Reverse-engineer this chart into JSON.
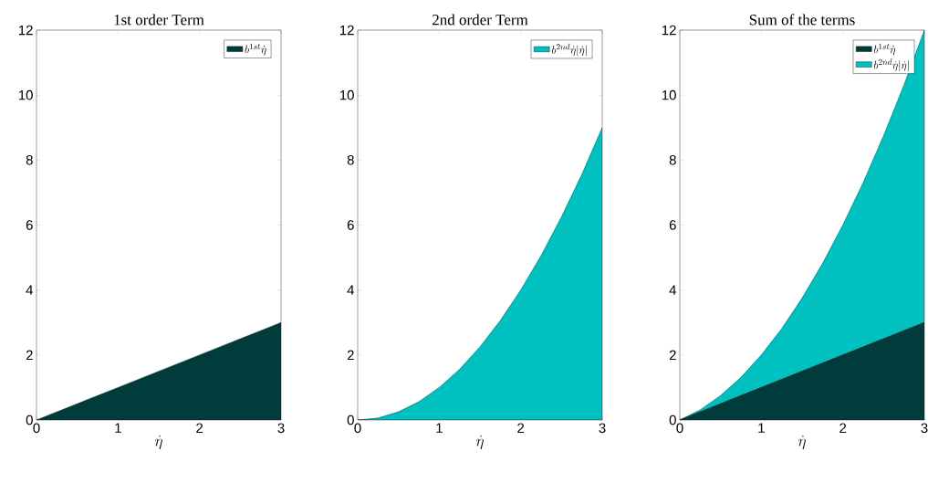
{
  "chart_data": [
    {
      "type": "area",
      "title": "1st order Term",
      "xlabel": "\\dot{\\eta}",
      "x": [
        0,
        0.25,
        0.5,
        0.75,
        1,
        1.25,
        1.5,
        1.75,
        2,
        2.25,
        2.5,
        2.75,
        3
      ],
      "series": [
        {
          "name": "b^{1st}\\dot{\\eta}",
          "color": "#003c3c",
          "values": [
            0,
            0.25,
            0.5,
            0.75,
            1,
            1.25,
            1.5,
            1.75,
            2,
            2.25,
            2.5,
            2.75,
            3
          ]
        }
      ],
      "xlim": [
        0,
        3
      ],
      "ylim": [
        0,
        12
      ],
      "xticks": [
        0,
        1,
        2,
        3
      ],
      "yticks": [
        0,
        2,
        4,
        6,
        8,
        10,
        12
      ],
      "legend": "top right"
    },
    {
      "type": "area",
      "title": "2nd order Term",
      "xlabel": "\\dot{\\eta}",
      "x": [
        0,
        0.25,
        0.5,
        0.75,
        1,
        1.25,
        1.5,
        1.75,
        2,
        2.25,
        2.5,
        2.75,
        3
      ],
      "series": [
        {
          "name": "b^{2nd}\\dot{\\eta}|\\dot{\\eta}|",
          "color": "#00c0c0",
          "values": [
            0,
            0.06,
            0.25,
            0.56,
            1,
            1.56,
            2.25,
            3.06,
            4,
            5.06,
            6.25,
            7.56,
            9
          ]
        }
      ],
      "xlim": [
        0,
        3
      ],
      "ylim": [
        0,
        12
      ],
      "xticks": [
        0,
        1,
        2,
        3
      ],
      "yticks": [
        0,
        2,
        4,
        6,
        8,
        10,
        12
      ],
      "legend": "top right"
    },
    {
      "type": "area",
      "title": "Sum of the terms",
      "xlabel": "\\dot{\\eta}",
      "x": [
        0,
        0.25,
        0.5,
        0.75,
        1,
        1.25,
        1.5,
        1.75,
        2,
        2.25,
        2.5,
        2.75,
        3
      ],
      "stacked": true,
      "series": [
        {
          "name": "b^{1st}\\dot{\\eta}",
          "color": "#003c3c",
          "values": [
            0,
            0.25,
            0.5,
            0.75,
            1,
            1.25,
            1.5,
            1.75,
            2,
            2.25,
            2.5,
            2.75,
            3
          ]
        },
        {
          "name": "b^{2nd}\\dot{\\eta}|\\dot{\\eta}|",
          "color": "#00c0c0",
          "values": [
            0,
            0.06,
            0.25,
            0.56,
            1,
            1.56,
            2.25,
            3.06,
            4,
            5.06,
            6.25,
            7.56,
            9
          ]
        }
      ],
      "xlim": [
        0,
        3
      ],
      "ylim": [
        0,
        12
      ],
      "xticks": [
        0,
        1,
        2,
        3
      ],
      "yticks": [
        0,
        2,
        4,
        6,
        8,
        10,
        12
      ],
      "legend": "top right"
    }
  ]
}
